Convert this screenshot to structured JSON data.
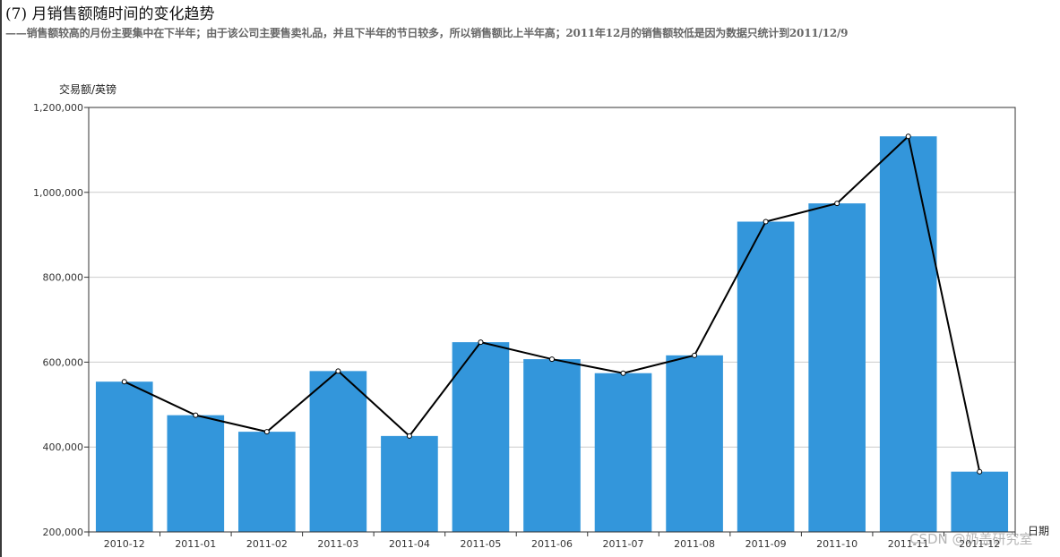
{
  "heading": "(7) 月销售额随时间的变化趋势",
  "subheading": "——销售额较高的月份主要集中在下半年；由于该公司主要售卖礼品，并且下半年的节日较多，所以销售额比上半年高；2011年12月的销售额较低是因为数据只统计到2011/12/9",
  "watermark": "CSDN @奶盖研究室",
  "colors": {
    "bar": "#3396db",
    "line": "#000000",
    "grid": "#cccccc",
    "axis": "#333333"
  },
  "chart_data": {
    "type": "bar",
    "categories": [
      "2010-12",
      "2011-01",
      "2011-02",
      "2011-03",
      "2011-04",
      "2011-05",
      "2011-06",
      "2011-07",
      "2011-08",
      "2011-09",
      "2011-10",
      "2011-11",
      "2011-12"
    ],
    "series": [
      {
        "values": [
          554000,
          475000,
          436000,
          579000,
          426000,
          647000,
          607000,
          574000,
          616000,
          931000,
          974000,
          1132000,
          342000
        ]
      },
      {
        "type": "line",
        "values": [
          554000,
          475000,
          436000,
          579000,
          426000,
          647000,
          607000,
          574000,
          616000,
          931000,
          974000,
          1132000,
          342000
        ]
      }
    ],
    "title": "",
    "xlabel": "日期",
    "ylabel": "交易额/英镑",
    "ylim": [
      200000,
      1200000
    ],
    "yticks": [
      200000,
      400000,
      600000,
      800000,
      1000000,
      1200000
    ],
    "ytick_labels": [
      "200,000",
      "400,000",
      "600,000",
      "800,000",
      "1,000,000",
      "1,200,000"
    ],
    "grid": true,
    "legend": "none"
  }
}
